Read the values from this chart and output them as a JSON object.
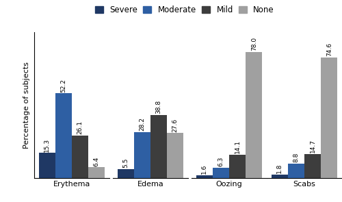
{
  "categories": [
    "Erythema",
    "Edema",
    "Oozing",
    "Scabs"
  ],
  "series": {
    "Severe": [
      15.3,
      5.5,
      1.6,
      1.8
    ],
    "Moderate": [
      52.2,
      28.2,
      6.3,
      8.8
    ],
    "Mild": [
      26.1,
      38.8,
      14.1,
      14.7
    ],
    "None": [
      6.4,
      27.6,
      78.0,
      74.6
    ]
  },
  "colors": {
    "Severe": "#1f3864",
    "Moderate": "#2e5fa3",
    "Mild": "#3d3d3d",
    "None": "#a0a0a0"
  },
  "ylabel": "Percentage of subjects",
  "ylim": [
    0,
    90
  ],
  "bar_width": 0.55,
  "legend_order": [
    "Severe",
    "Moderate",
    "Mild",
    "None"
  ],
  "label_fontsize": 6.5,
  "axis_fontsize": 8,
  "legend_fontsize": 8.5
}
